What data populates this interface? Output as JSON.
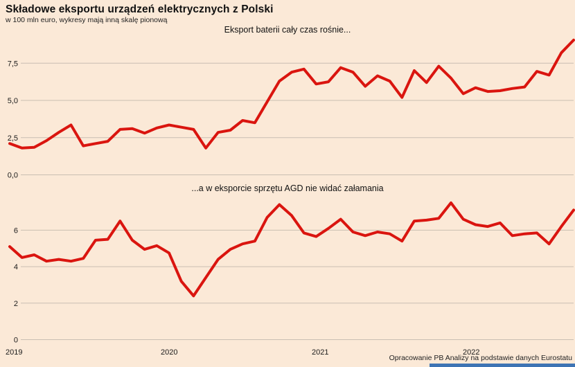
{
  "header": {
    "title": "Składowe eksportu urządzeń elektrycznych z Polski",
    "subtitle": "w 100 mln euro, wykresy mają inną skalę pionową"
  },
  "footer": {
    "source": "Opracowanie PB Analizy na podstawie danych Eurostatu"
  },
  "colors": {
    "background": "#fbe9d7",
    "line": "#da150f",
    "grid": "#c9beb2",
    "text": "#1a1a1a",
    "accent_bar": "#3e74b4"
  },
  "chart_data": [
    {
      "type": "line",
      "name": "battery-exports",
      "title": "Eksport baterii cały czas rośnie...",
      "unit": "100 mln euro",
      "frequency": "monthly",
      "x_range": [
        "2019-01",
        "2022-11"
      ],
      "x_labels": [
        "2019",
        "2020",
        "2021",
        "2022"
      ],
      "y_ticks": [
        0,
        2.5,
        5,
        7.5
      ],
      "y_tick_labels": [
        "0,0",
        "2,5",
        "5,0",
        "7,5"
      ],
      "ylim": [
        0,
        9.6
      ],
      "grid": true,
      "legend": false,
      "values": [
        2.1,
        1.8,
        1.85,
        2.3,
        2.85,
        3.35,
        1.95,
        2.1,
        2.25,
        3.05,
        3.1,
        2.8,
        3.15,
        3.35,
        3.2,
        3.05,
        1.8,
        2.85,
        3.0,
        3.65,
        3.5,
        4.9,
        6.3,
        6.9,
        7.1,
        6.1,
        6.25,
        7.2,
        6.9,
        5.95,
        6.65,
        6.3,
        5.2,
        7.0,
        6.2,
        7.3,
        6.5,
        5.45,
        5.85,
        5.6,
        5.65,
        5.8,
        5.9,
        6.95,
        6.7,
        8.2,
        9.05
      ]
    },
    {
      "type": "line",
      "name": "agd-exports",
      "title": "...a w eksporcie sprzętu AGD nie widać załamania",
      "unit": "100 mln euro",
      "frequency": "monthly",
      "x_range": [
        "2019-01",
        "2022-11"
      ],
      "x_labels": [
        "2019",
        "2020",
        "2021",
        "2022"
      ],
      "y_ticks": [
        0,
        2,
        4,
        6
      ],
      "y_tick_labels": [
        "0",
        "2",
        "4",
        "6"
      ],
      "ylim": [
        0,
        7.8
      ],
      "grid": true,
      "legend": false,
      "values": [
        5.1,
        4.5,
        4.65,
        4.3,
        4.4,
        4.3,
        4.45,
        5.45,
        5.5,
        6.5,
        5.45,
        4.95,
        5.15,
        4.75,
        3.2,
        2.4,
        3.4,
        4.4,
        4.95,
        5.25,
        5.4,
        6.7,
        7.4,
        6.8,
        5.85,
        5.65,
        6.1,
        6.6,
        5.9,
        5.7,
        5.9,
        5.8,
        5.4,
        6.5,
        6.55,
        6.65,
        7.5,
        6.6,
        6.3,
        6.2,
        6.4,
        5.7,
        5.8,
        5.85,
        5.25,
        6.2,
        7.1
      ]
    }
  ]
}
